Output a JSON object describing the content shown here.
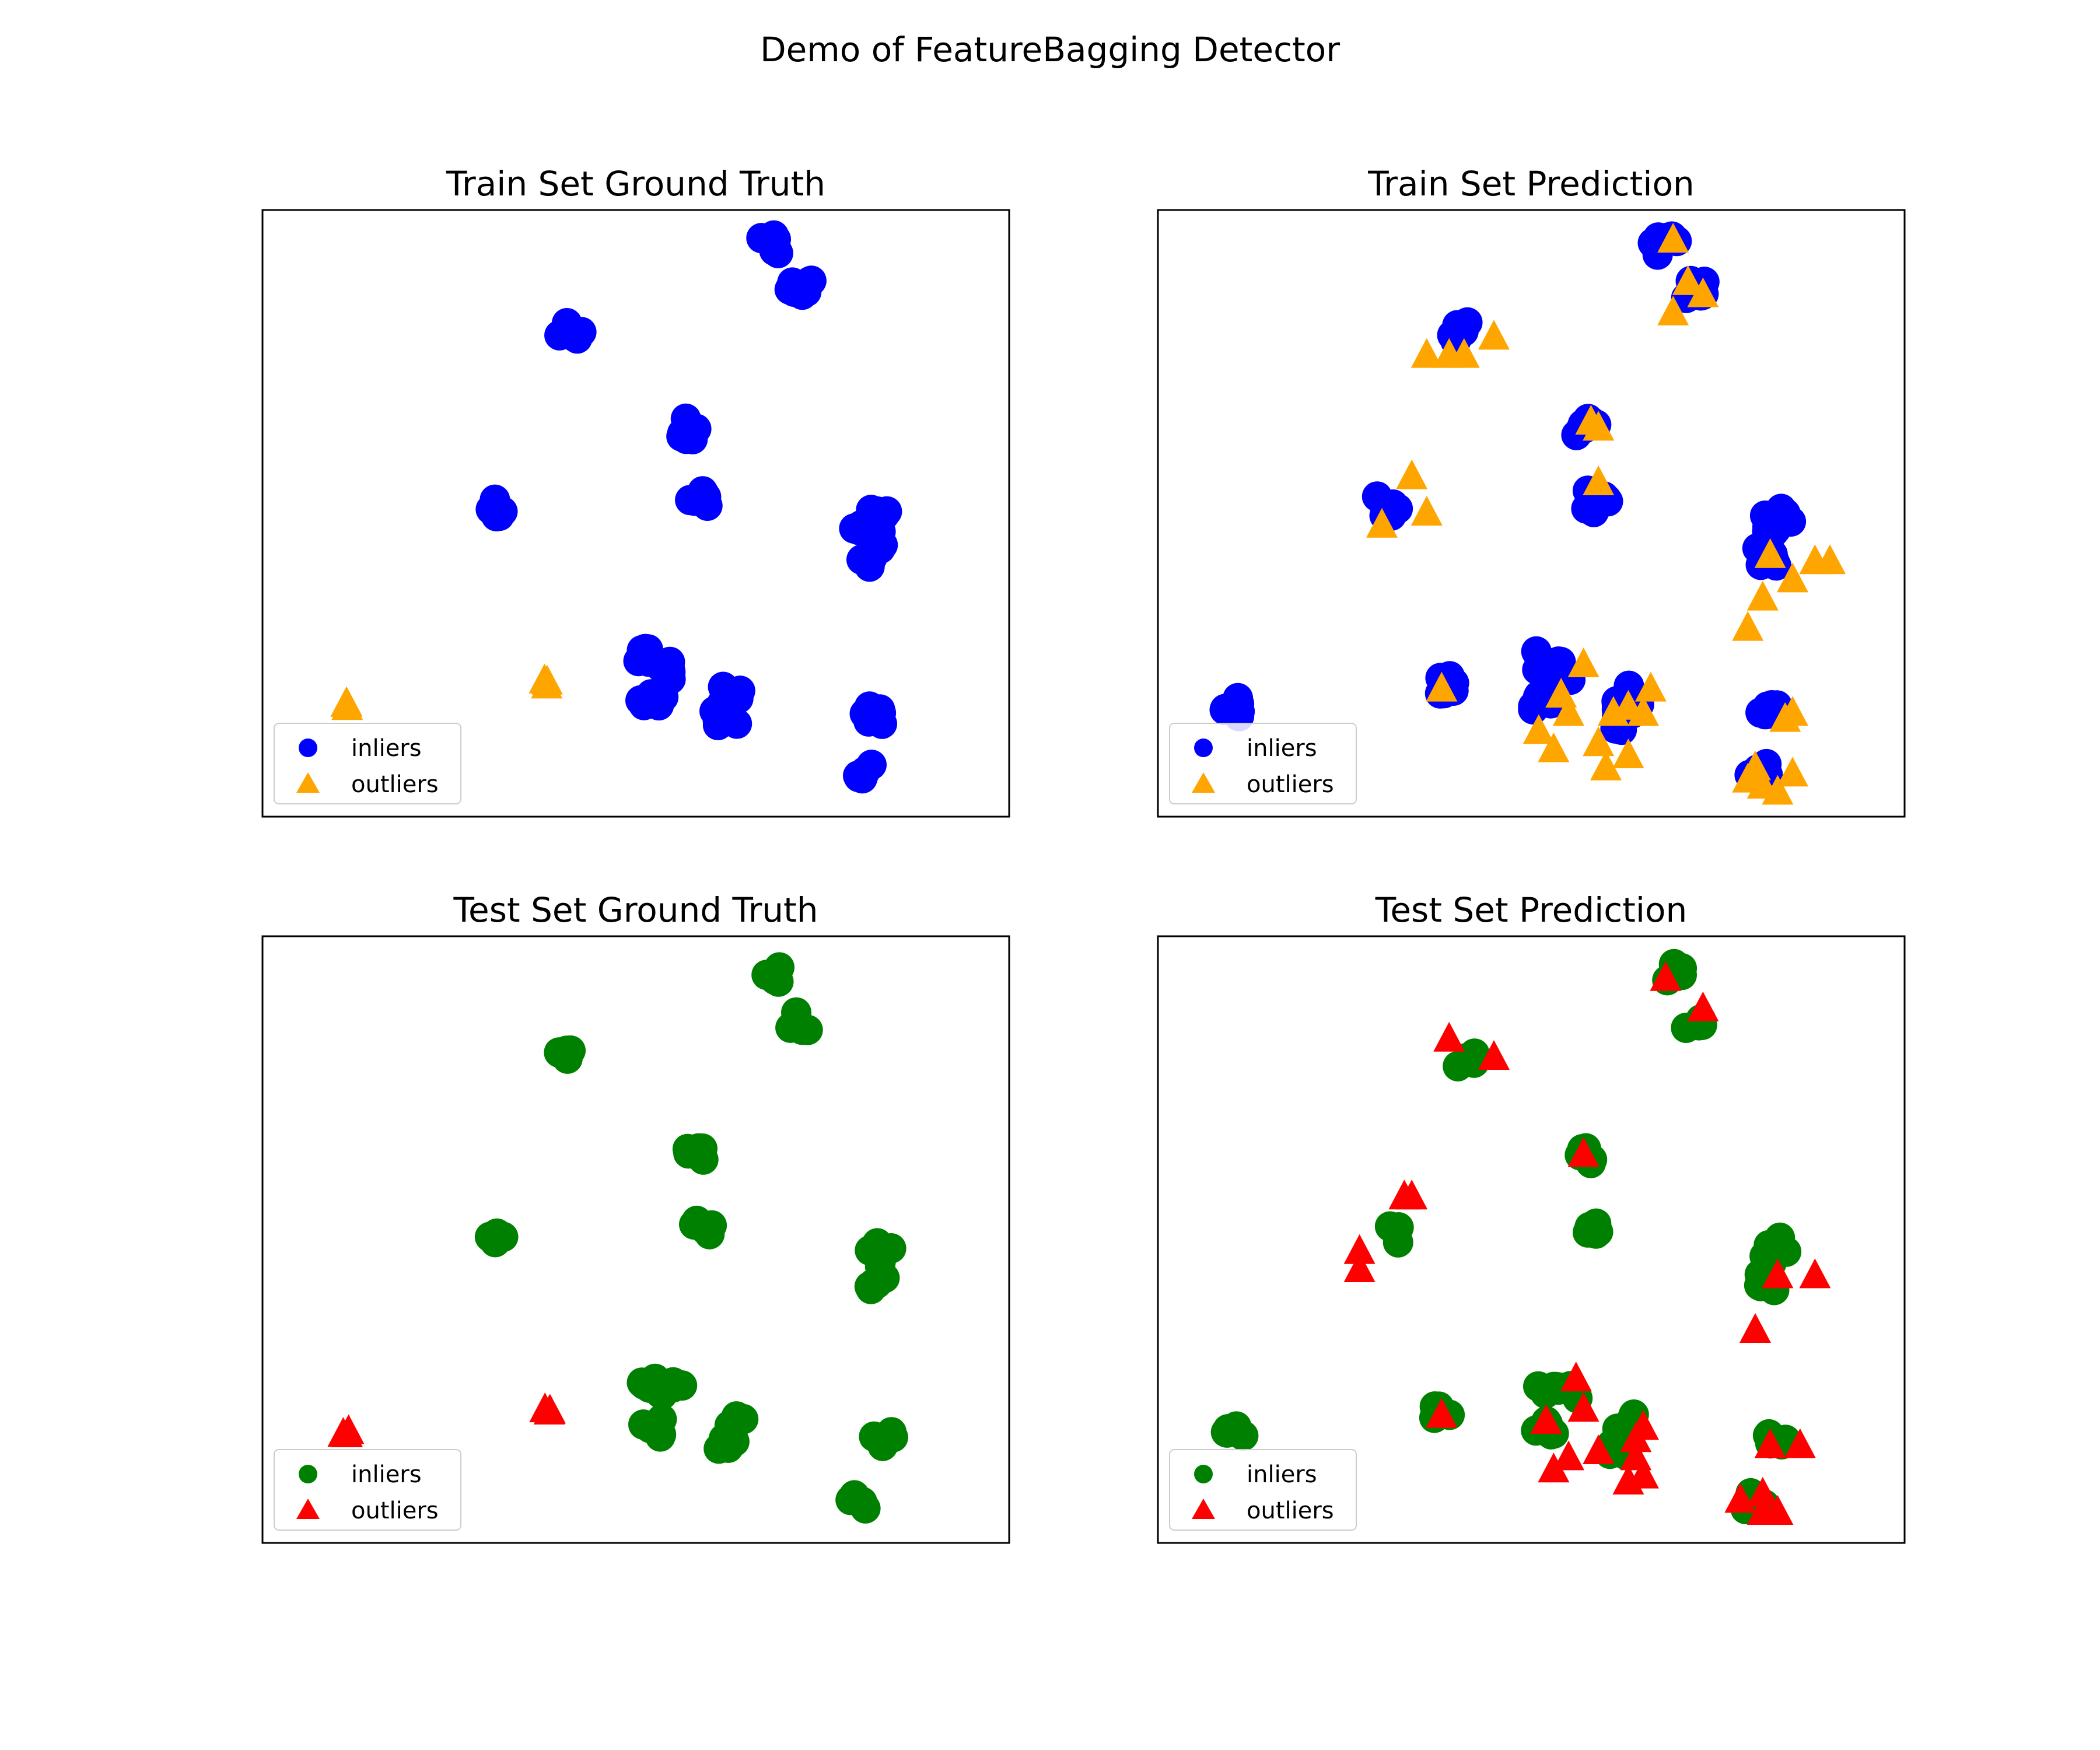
{
  "figure": {
    "title": "Demo of FeatureBagging Detector"
  },
  "colors": {
    "train_inlier": "#0000ff",
    "train_outlier": "#ffa500",
    "test_inlier": "#008000",
    "test_outlier": "#ff0000"
  },
  "chart_data": [
    {
      "type": "scatter",
      "title": "Train Set Ground Truth",
      "xlabel": "",
      "ylabel": "",
      "xlim": [
        0,
        100
      ],
      "ylim": [
        0,
        100
      ],
      "grid": false,
      "legend": "lower-left",
      "series": [
        {
          "name": "inliers",
          "marker": "circle",
          "color": "#0000ff",
          "spread": 1.8,
          "n": 7,
          "points": [
            [
              68,
              94
            ],
            [
              72,
              87
            ],
            [
              41,
              80
            ],
            [
              31,
              51
            ],
            [
              57,
              64
            ],
            [
              59,
              52
            ],
            [
              81,
              47
            ],
            [
              83,
              49
            ],
            [
              82,
              43
            ],
            [
              54,
              24
            ],
            [
              52,
              19
            ],
            [
              63,
              20
            ],
            [
              62,
              16
            ],
            [
              82,
              17
            ],
            [
              80,
              7
            ],
            [
              52,
              26
            ]
          ]
        },
        {
          "name": "outliers",
          "marker": "triangle",
          "color": "#ffa500",
          "spread": 0.6,
          "n": 3,
          "points": [
            [
              11,
              18
            ],
            [
              38,
              22
            ]
          ]
        }
      ]
    },
    {
      "type": "scatter",
      "title": "Train Set Prediction",
      "xlabel": "",
      "ylabel": "",
      "xlim": [
        0,
        100
      ],
      "ylim": [
        0,
        100
      ],
      "grid": false,
      "legend": "lower-left",
      "series": [
        {
          "name": "inliers",
          "marker": "circle",
          "color": "#0000ff",
          "spread": 1.8,
          "n": 7,
          "points": [
            [
              68,
              94
            ],
            [
              72,
              87
            ],
            [
              41,
              80
            ],
            [
              31,
              51
            ],
            [
              57,
              64
            ],
            [
              59,
              52
            ],
            [
              81,
              47
            ],
            [
              83,
              49
            ],
            [
              82,
              43
            ],
            [
              54,
              24
            ],
            [
              52,
              19
            ],
            [
              63,
              20
            ],
            [
              62,
              16
            ],
            [
              82,
              17
            ],
            [
              80,
              7
            ],
            [
              52,
              26
            ],
            [
              10,
              18
            ],
            [
              38,
              22
            ]
          ]
        },
        {
          "name": "outliers",
          "marker": "triangle",
          "color": "#ffa500",
          "spread": 0,
          "n": 1,
          "points": [
            [
              69,
              95
            ],
            [
              71,
              88
            ],
            [
              73,
              86
            ],
            [
              69,
              83
            ],
            [
              36,
              76
            ],
            [
              39,
              76
            ],
            [
              41,
              76
            ],
            [
              45,
              79
            ],
            [
              58,
              65
            ],
            [
              59,
              64
            ],
            [
              30,
              48
            ],
            [
              34,
              56
            ],
            [
              36,
              50
            ],
            [
              59,
              55
            ],
            [
              82,
              43
            ],
            [
              85,
              39
            ],
            [
              88,
              42
            ],
            [
              90,
              42
            ],
            [
              81,
              36
            ],
            [
              79,
              31
            ],
            [
              38,
              21
            ],
            [
              57,
              25
            ],
            [
              54,
              20
            ],
            [
              55,
              17
            ],
            [
              61,
              17
            ],
            [
              63,
              18
            ],
            [
              66,
              21
            ],
            [
              65,
              17
            ],
            [
              51,
              14
            ],
            [
              53,
              11
            ],
            [
              59,
              12
            ],
            [
              60,
              8
            ],
            [
              63,
              10
            ],
            [
              84,
              16
            ],
            [
              85,
              17
            ],
            [
              79,
              6
            ],
            [
              80,
              8
            ],
            [
              81,
              5
            ],
            [
              83,
              4
            ],
            [
              85,
              7
            ]
          ]
        }
      ]
    },
    {
      "type": "scatter",
      "title": "Test Set Ground Truth",
      "xlabel": "",
      "ylabel": "",
      "xlim": [
        0,
        100
      ],
      "ylim": [
        0,
        100
      ],
      "grid": false,
      "legend": "lower-left",
      "series": [
        {
          "name": "inliers",
          "marker": "circle",
          "color": "#008000",
          "spread": 1.5,
          "n": 5,
          "points": [
            [
              69,
              94
            ],
            [
              72,
              86
            ],
            [
              41,
              80
            ],
            [
              31,
              51
            ],
            [
              58,
              64
            ],
            [
              59,
              52
            ],
            [
              82,
              47
            ],
            [
              83,
              49
            ],
            [
              82,
              43
            ],
            [
              55,
              25
            ],
            [
              52,
              19
            ],
            [
              63,
              20
            ],
            [
              62,
              16
            ],
            [
              83,
              17
            ],
            [
              80,
              7
            ],
            [
              52,
              26
            ]
          ]
        },
        {
          "name": "outliers",
          "marker": "triangle",
          "color": "#ff0000",
          "spread": 0.6,
          "n": 3,
          "points": [
            [
              11,
              18
            ],
            [
              38,
              22
            ]
          ]
        }
      ]
    },
    {
      "type": "scatter",
      "title": "Test Set Prediction",
      "xlabel": "",
      "ylabel": "",
      "xlim": [
        0,
        100
      ],
      "ylim": [
        0,
        100
      ],
      "grid": false,
      "legend": "lower-left",
      "series": [
        {
          "name": "inliers",
          "marker": "circle",
          "color": "#008000",
          "spread": 1.5,
          "n": 5,
          "points": [
            [
              69,
              94
            ],
            [
              72,
              86
            ],
            [
              41,
              80
            ],
            [
              31,
              51
            ],
            [
              58,
              64
            ],
            [
              59,
              52
            ],
            [
              82,
              47
            ],
            [
              83,
              49
            ],
            [
              82,
              43
            ],
            [
              55,
              25
            ],
            [
              52,
              19
            ],
            [
              63,
              20
            ],
            [
              62,
              16
            ],
            [
              83,
              17
            ],
            [
              80,
              7
            ],
            [
              52,
              26
            ],
            [
              10,
              18
            ],
            [
              38,
              22
            ]
          ]
        },
        {
          "name": "outliers",
          "marker": "triangle",
          "color": "#ff0000",
          "spread": 0,
          "n": 1,
          "points": [
            [
              68,
              93
            ],
            [
              73,
              88
            ],
            [
              39,
              83
            ],
            [
              45,
              80
            ],
            [
              57,
              64
            ],
            [
              27,
              48
            ],
            [
              27,
              45
            ],
            [
              33,
              57
            ],
            [
              34,
              57
            ],
            [
              83,
              44
            ],
            [
              88,
              44
            ],
            [
              80,
              35
            ],
            [
              38,
              21
            ],
            [
              56,
              27
            ],
            [
              52,
              20
            ],
            [
              57,
              22
            ],
            [
              53,
              12
            ],
            [
              55,
              14
            ],
            [
              59,
              15
            ],
            [
              64,
              17
            ],
            [
              64,
              14
            ],
            [
              65,
              19
            ],
            [
              63,
              10
            ],
            [
              65,
              11
            ],
            [
              82,
              16
            ],
            [
              86,
              16
            ],
            [
              78,
              7
            ],
            [
              81,
              8
            ],
            [
              81,
              5
            ],
            [
              83,
              5
            ]
          ]
        }
      ]
    }
  ]
}
